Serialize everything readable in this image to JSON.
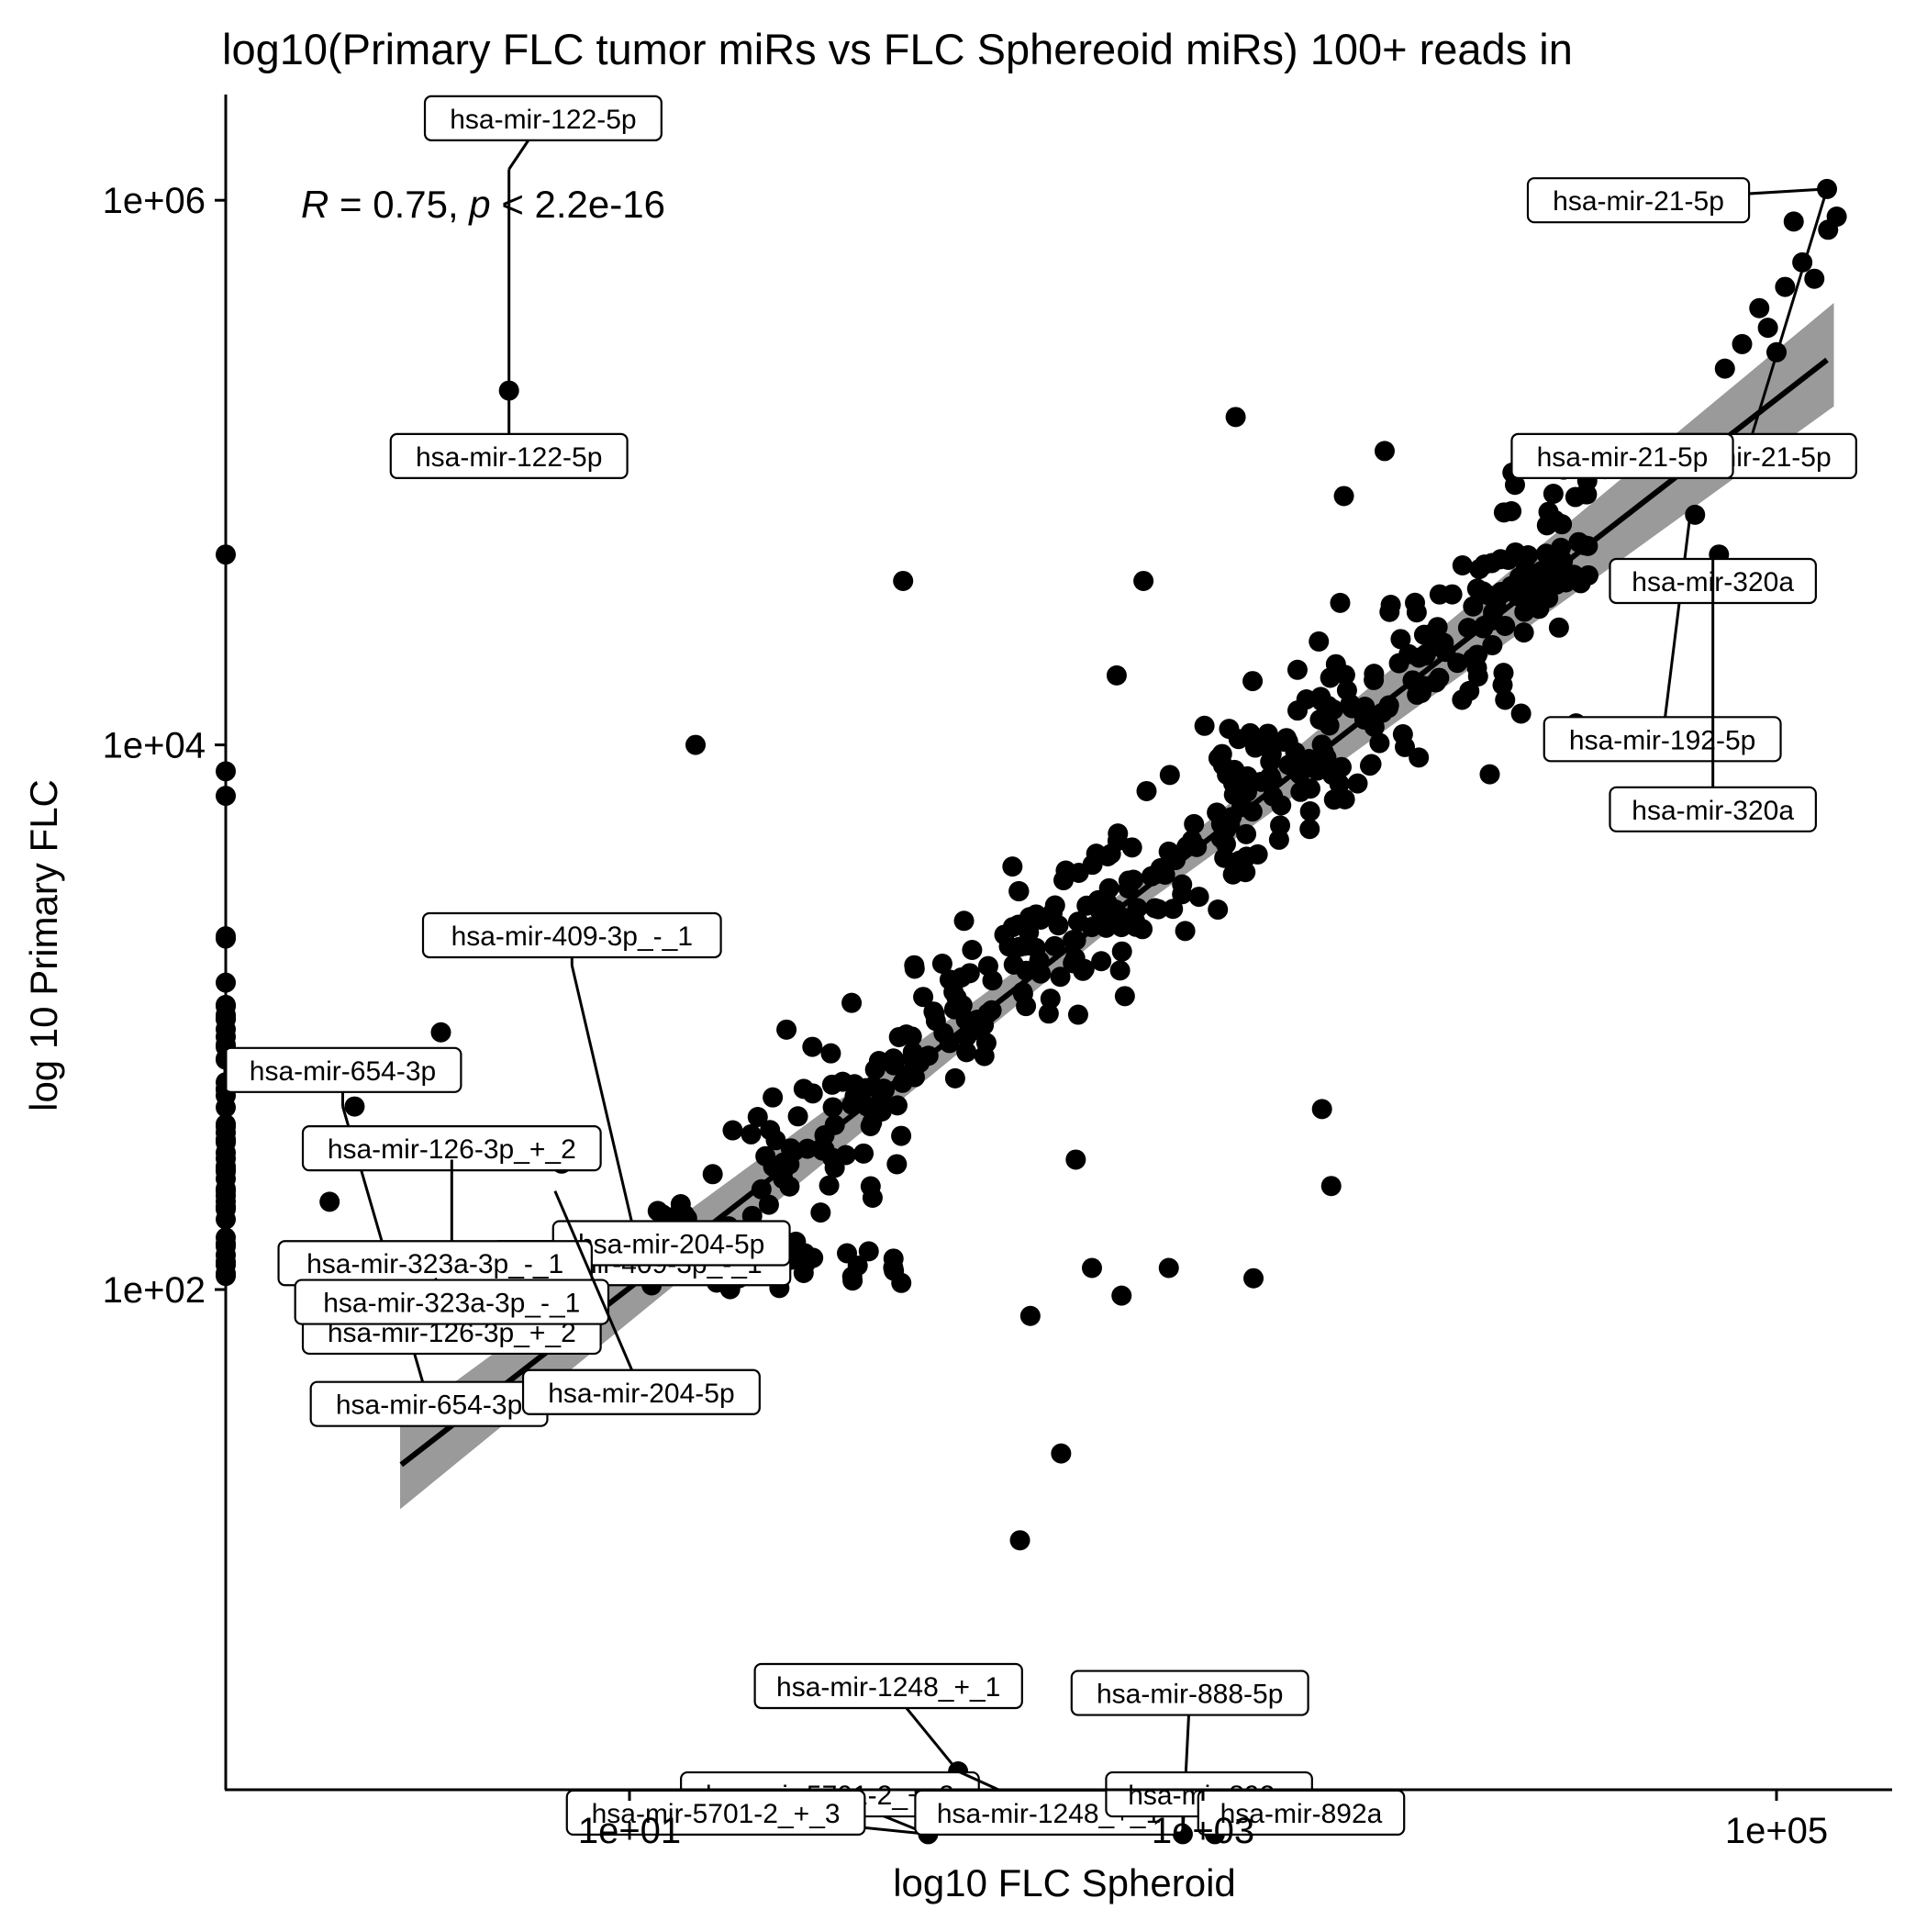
{
  "chart_data": {
    "type": "scatter",
    "title": "log10(Primary FLC tumor miRs vs FLC Sphereoid miRs) 100+ reads in",
    "xlabel": "log10 FLC Spheroid",
    "ylabel": "log 10 Primary FLC",
    "x_scale": "log10",
    "y_scale": "log10",
    "xlim": [
      0.5,
      300000
    ],
    "ylim": [
      1.0,
      2500000
    ],
    "x_ticks": [
      {
        "value": 10,
        "label": "1e+01"
      },
      {
        "value": 1000,
        "label": "1e+03"
      },
      {
        "value": 100000,
        "label": "1e+05"
      }
    ],
    "y_ticks": [
      {
        "value": 100,
        "label": "1e+02"
      },
      {
        "value": 10000,
        "label": "1e+04"
      },
      {
        "value": 1000000,
        "label": "1e+06"
      }
    ],
    "grid": false,
    "legend": "none",
    "stat_annotation": {
      "r_symbol": "R",
      "r_text": " = 0.75, ",
      "p_symbol": "p",
      "p_text": " < 2.2e-16"
    },
    "regression": {
      "x_range": [
        1.6,
        150000
      ],
      "intercept_log10": 1.19,
      "slope": 0.816,
      "band": {
        "x_log10": [
          0.2,
          5.2
        ],
        "half_width_log10_ends": [
          0.16,
          0.19
        ],
        "half_width_log10_center": 0.05
      }
    },
    "labels": [
      {
        "text": "hsa-mir-122-5p",
        "x": 3.8,
        "y": 1300000,
        "lx": 5.0,
        "ly": 2000000
      },
      {
        "text": "hsa-mir-122-5p",
        "x": 3.8,
        "y": 1300000,
        "lx": 3.8,
        "ly": 115000
      },
      {
        "text": "hsa-mir-21-5p",
        "x": 150000,
        "y": 1100000,
        "lx": 33000,
        "ly": 1000000
      },
      {
        "text": "hsa-mir-21-5p",
        "x": 150000,
        "y": 1100000,
        "lx": 78000,
        "ly": 115000
      },
      {
        "text": "hsa-mir-21-5p",
        "x": 25000,
        "y": 95000,
        "lx": 29000,
        "ly": 115000
      },
      {
        "text": "hsa-mir-192-5p",
        "x": 50000,
        "y": 70000,
        "lx": 40000,
        "ly": 10500
      },
      {
        "text": "hsa-mir-320a",
        "x": 60000,
        "y": 50000,
        "lx": 60000,
        "ly": 40000
      },
      {
        "text": "hsa-mir-320a",
        "x": 60000,
        "y": 50000,
        "lx": 60000,
        "ly": 5800
      },
      {
        "text": "hsa-mir-409-3p_-_1",
        "x": 6.3,
        "y": 1550,
        "lx": 6.3,
        "ly": 2000
      },
      {
        "text": "hsa-mir-409-3p_-_1",
        "x": 6.3,
        "y": 1550,
        "lx": 11.0,
        "ly": 125
      },
      {
        "text": "hsa-mir-204-5p",
        "x": 14.0,
        "y": 145,
        "lx": 14.0,
        "ly": 148
      },
      {
        "text": "hsa-mir-654-3p",
        "x": 1.0,
        "y": 470,
        "lx": 1.0,
        "ly": 640
      },
      {
        "text": "hsa-mir-654-3p",
        "x": 1.0,
        "y": 470,
        "lx": 2.0,
        "ly": 38
      },
      {
        "text": "hsa-mir-126-3p_+_2",
        "x": 2.4,
        "y": 300,
        "lx": 2.4,
        "ly": 330
      },
      {
        "text": "hsa-mir-126-3p_+_2",
        "x": 2.4,
        "y": 300,
        "lx": 2.4,
        "ly": 70
      },
      {
        "text": "hsa-mir-323a-3p_-_1",
        "x": 2.1,
        "y": 110,
        "lx": 2.1,
        "ly": 125
      },
      {
        "text": "hsa-mir-323a-3p_-_1",
        "x": 2.1,
        "y": 110,
        "lx": 2.4,
        "ly": 90
      },
      {
        "text": "hsa-mir-204-5p",
        "x": 5.5,
        "y": 230,
        "lx": 11.0,
        "ly": 42
      },
      {
        "text": "hsa-mir-5701-2_+_3",
        "x": 110,
        "y": 1.0,
        "lx": 50,
        "ly": 1.4
      },
      {
        "text": "hsa-mir-5701-2_+_3",
        "x": 110,
        "y": 1.0,
        "lx": 20,
        "ly": 1.2
      },
      {
        "text": "hsa-mir-1248_+_1",
        "x": 140,
        "y": 1.7,
        "lx": 80,
        "ly": 3.5
      },
      {
        "text": "hsa-mir-1248_+_1",
        "x": 140,
        "y": 1.7,
        "lx": 290,
        "ly": 1.2
      },
      {
        "text": "hsa-mir-888-5p",
        "x": 850,
        "y": 1.0,
        "lx": 900,
        "ly": 3.3
      },
      {
        "text": "hsa-mir-892a",
        "x": 1100,
        "y": 1.0,
        "lx": 1050,
        "ly": 1.4
      },
      {
        "text": "hsa-mir-892a",
        "x": 1100,
        "y": 1.0,
        "lx": 2200,
        "ly": 1.2
      }
    ]
  }
}
